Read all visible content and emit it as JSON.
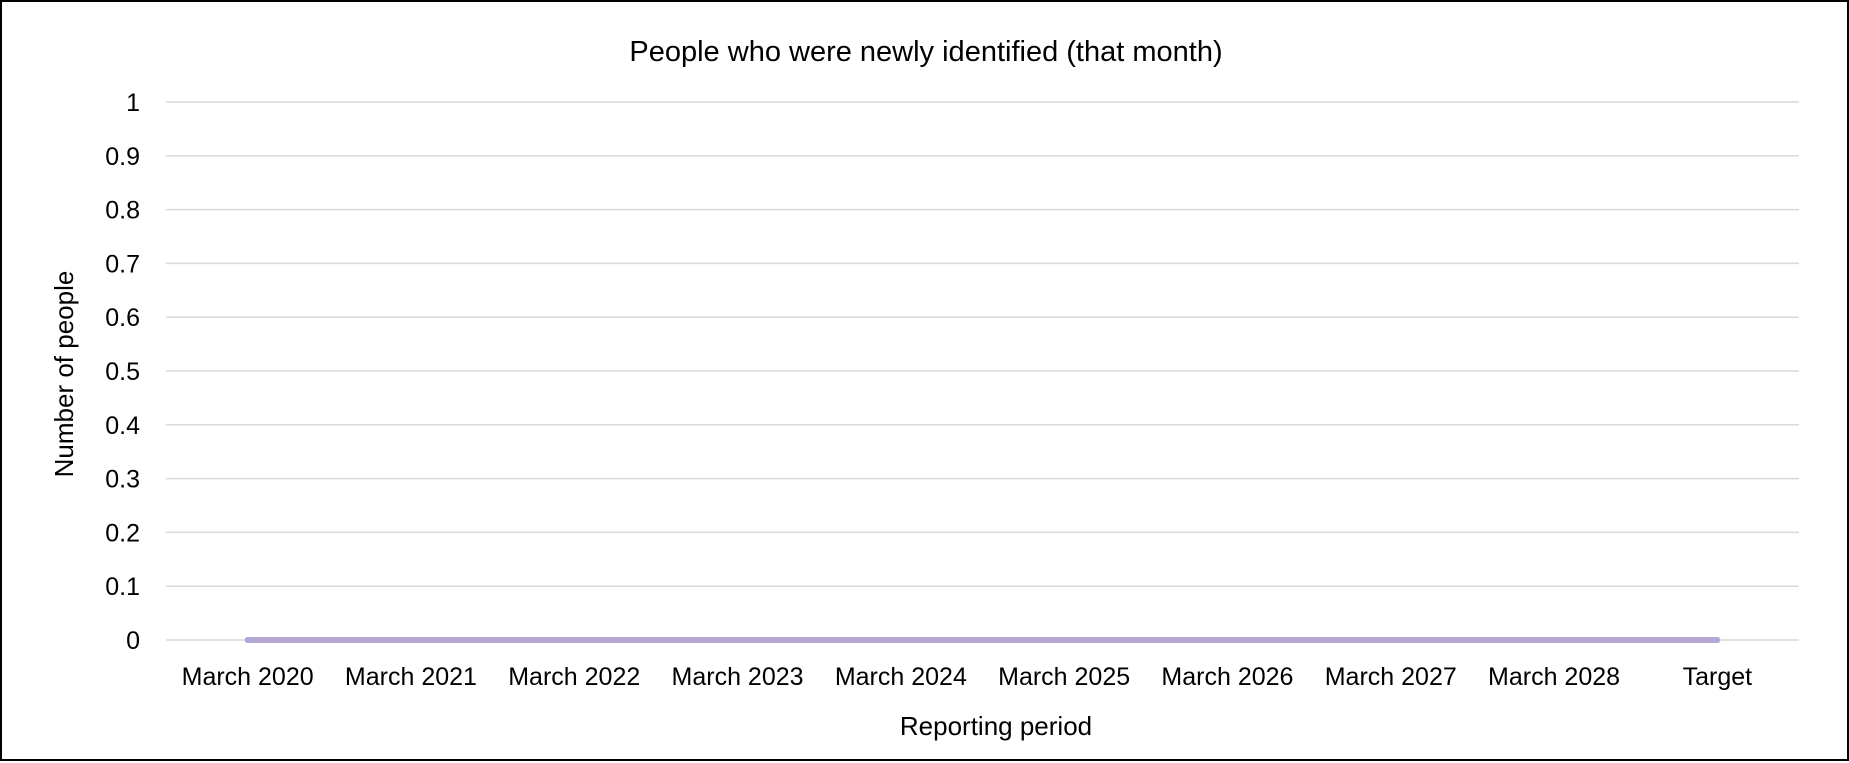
{
  "chart_data": {
    "type": "line",
    "title": "People who were newly identified (that month)",
    "xlabel": "Reporting period",
    "ylabel": "Number of people",
    "categories": [
      "March 2020",
      "March 2021",
      "March 2022",
      "March 2023",
      "March 2024",
      "March 2025",
      "March 2026",
      "March 2027",
      "March 2028",
      "Target"
    ],
    "series": [
      {
        "values": [
          0,
          0,
          0,
          0,
          0,
          0,
          0,
          0,
          0,
          0
        ],
        "color": "#b4a7d6"
      }
    ],
    "ylim": [
      0,
      1
    ],
    "yticks": [
      "0",
      "0.1",
      "0.2",
      "0.3",
      "0.4",
      "0.5",
      "0.6",
      "0.7",
      "0.8",
      "0.9",
      "1"
    ],
    "grid": true,
    "legend": "none",
    "colors": {
      "gridline": "#d9d9d9",
      "series": "#b4a7d6",
      "frame": "#000000"
    }
  }
}
